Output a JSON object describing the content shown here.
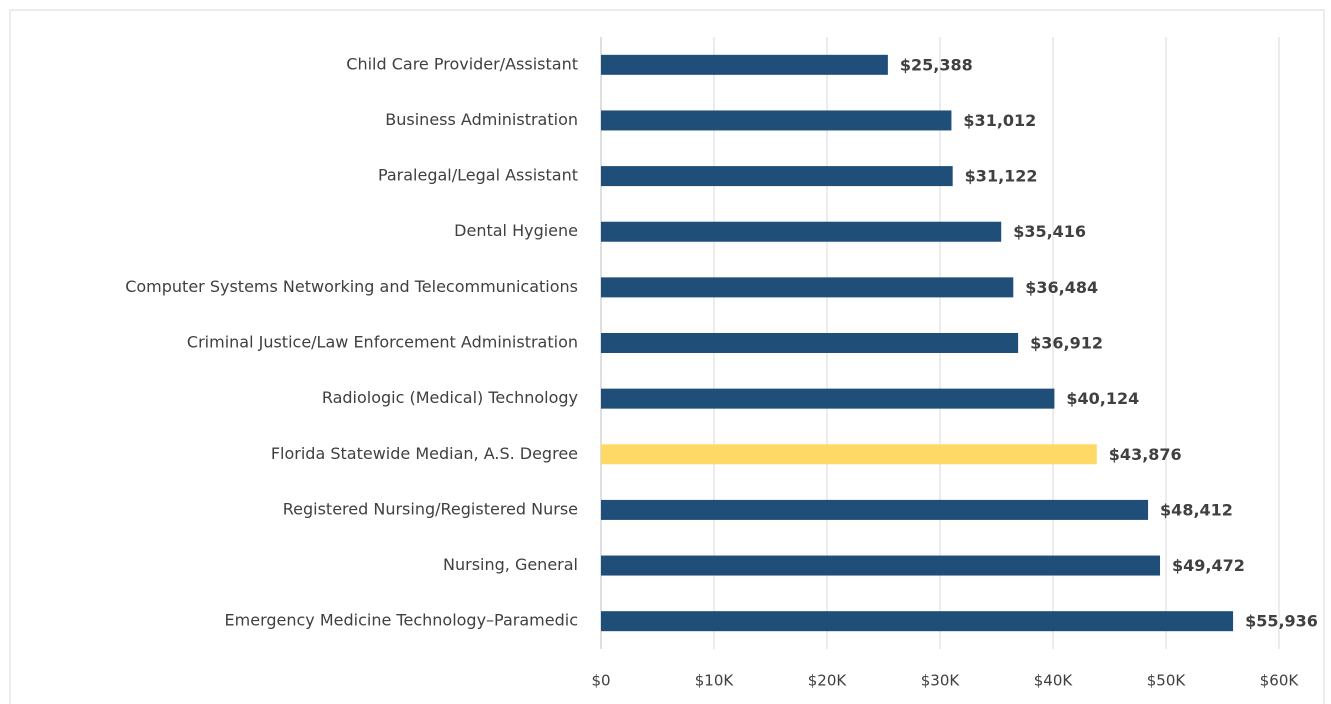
{
  "chart_data": {
    "type": "bar",
    "orientation": "horizontal",
    "categories": [
      "Child Care Provider/Assistant",
      "Business Administration",
      "Paralegal/Legal Assistant",
      "Dental Hygiene",
      "Computer Systems Networking and Telecommunications",
      "Criminal Justice/Law Enforcement Administration",
      "Radiologic (Medical) Technology",
      "Florida Statewide Median, A.S. Degree",
      "Registered Nursing/Registered Nurse",
      "Nursing, General",
      "Emergency Medicine Technology–Paramedic"
    ],
    "values": [
      25388,
      31012,
      31122,
      35416,
      36484,
      36912,
      40124,
      43876,
      48412,
      49472,
      55936
    ],
    "value_labels": [
      "$25,388",
      "$31,012",
      "$31,122",
      "$35,416",
      "$36,484",
      "$36,912",
      "$40,124",
      "$43,876",
      "$48,412",
      "$49,472",
      "$55,936"
    ],
    "colors": [
      "#1f4e79",
      "#1f4e79",
      "#1f4e79",
      "#1f4e79",
      "#1f4e79",
      "#1f4e79",
      "#1f4e79",
      "#ffd966",
      "#1f4e79",
      "#1f4e79",
      "#1f4e79"
    ],
    "xlim": [
      0,
      60000
    ],
    "xticks": [
      {
        "value": 0,
        "label": "$0"
      },
      {
        "value": 10000,
        "label": "$10K"
      },
      {
        "value": 20000,
        "label": "$20K"
      },
      {
        "value": 30000,
        "label": "$30K"
      },
      {
        "value": 40000,
        "label": "$40K"
      },
      {
        "value": 50000,
        "label": "$50K"
      },
      {
        "value": 60000,
        "label": "$60K"
      }
    ],
    "grid": true
  }
}
